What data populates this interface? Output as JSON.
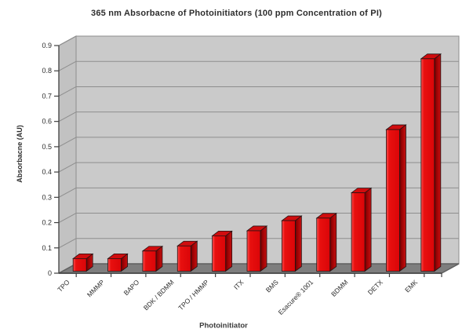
{
  "chart_data": {
    "type": "bar",
    "variant": "3d-column",
    "title": "365 nm Absorbacne of Photoinitiators (100 ppm Concentration of PI)",
    "xlabel": "Photoinitiator",
    "ylabel": "Absorbacne (AU)",
    "categories": [
      "TPO",
      "MMMP",
      "BAPO",
      "BDK / BDMM",
      "TPO / HMMP",
      "ITX",
      "BMS",
      "Esacure® 1001",
      "BDMM",
      "DETX",
      "EMK"
    ],
    "values": [
      0.05,
      0.05,
      0.08,
      0.1,
      0.14,
      0.16,
      0.2,
      0.21,
      0.31,
      0.56,
      0.84
    ],
    "ylim": [
      0,
      0.9
    ],
    "ytick_step": 0.1,
    "ytick_labels": [
      "0",
      "0.1",
      "0.2",
      "0.3",
      "0.4",
      "0.5",
      "0.6",
      "0.7",
      "0.8",
      "0.9"
    ],
    "grid": true,
    "legend": false,
    "x_labels_rotation_deg": -45,
    "colors": {
      "bar_front": "#e8100f",
      "bar_front_highlight": "#ff5050",
      "bar_top": "#d00c0e",
      "bar_side_dark": "#6f0001",
      "bar_side_light": "#c51011",
      "bar_outline": "#241414",
      "wall": "#cacaca",
      "side_wall": "#c2c2c2",
      "floor": "#7e7e7e",
      "floor_edge": "#5f5f5f",
      "gridline": "#8e8e8e",
      "axis": "#404040",
      "text": "#2d2d2d",
      "background": "#ffffff"
    }
  }
}
